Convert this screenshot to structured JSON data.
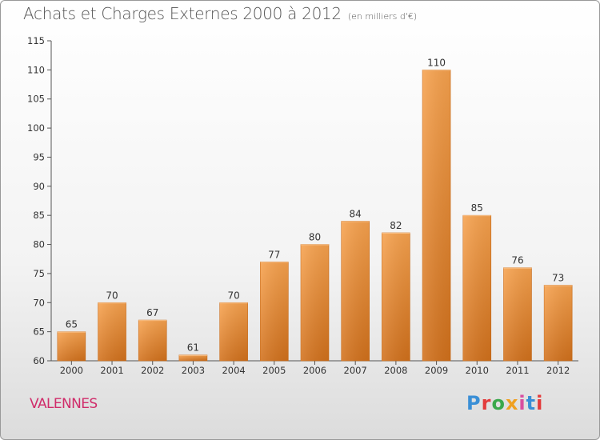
{
  "header": {
    "title": "Achats et Charges Externes 2000 à 2012",
    "unit": "(en milliers d'€)"
  },
  "commune": "VALENNES",
  "logo": {
    "letters": [
      "P",
      "r",
      "o",
      "x",
      "i",
      "t",
      "i"
    ],
    "colors": [
      "#3a8fd6",
      "#e33b3b",
      "#3aa84b",
      "#f0a020",
      "#d84ea0",
      "#3a8fd6",
      "#e33b3b"
    ]
  },
  "chart_data": {
    "type": "bar",
    "categories": [
      "2000",
      "2001",
      "2002",
      "2003",
      "2004",
      "2005",
      "2006",
      "2007",
      "2008",
      "2009",
      "2010",
      "2011",
      "2012"
    ],
    "values": [
      65,
      70,
      67,
      61,
      70,
      77,
      80,
      84,
      82,
      110,
      85,
      76,
      73
    ],
    "ylim": [
      60,
      115
    ],
    "yticks": [
      60,
      65,
      70,
      75,
      80,
      85,
      90,
      95,
      100,
      105,
      110,
      115
    ],
    "grid": false,
    "bar_color": "#f0953e"
  }
}
